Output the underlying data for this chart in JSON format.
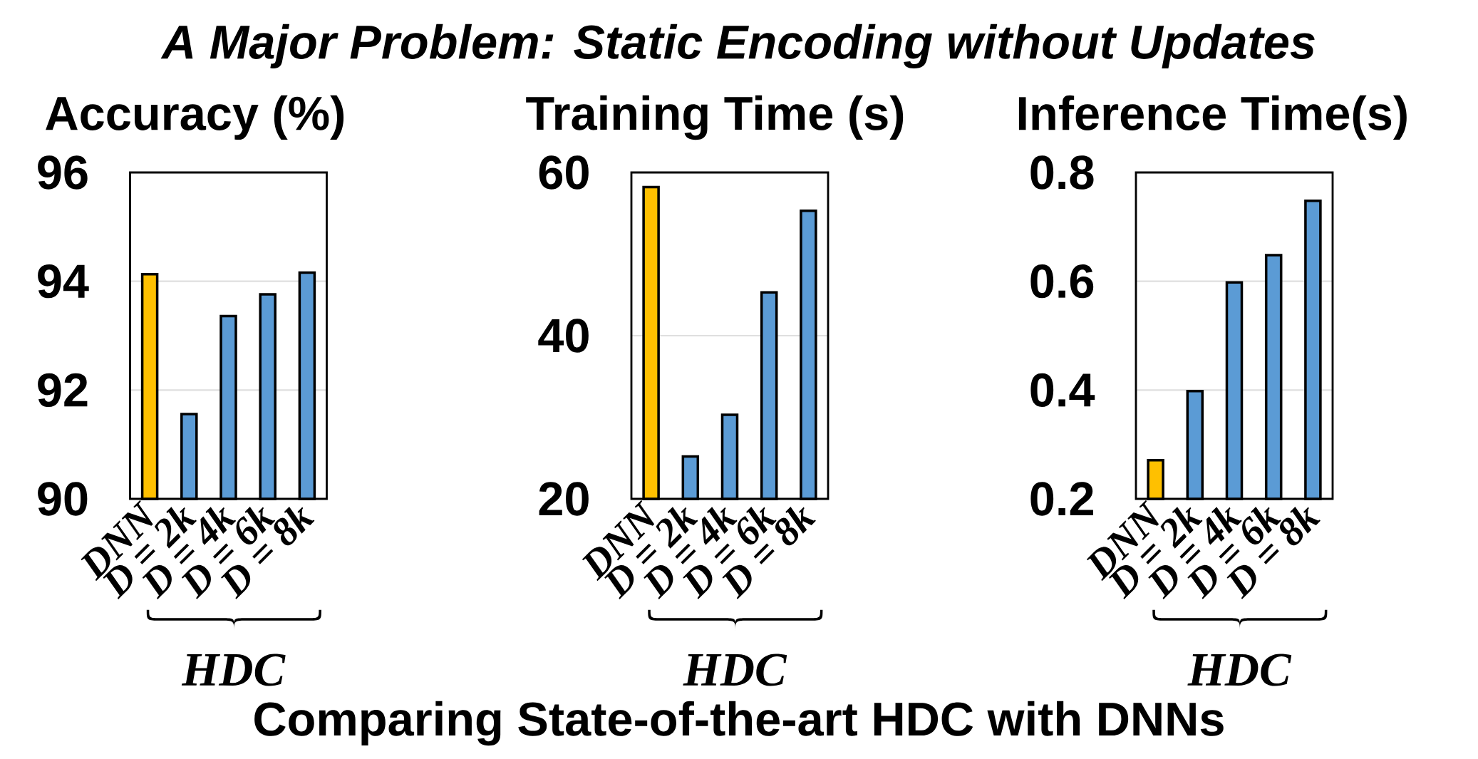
{
  "chart_data": [
    {
      "type": "bar",
      "title": "A Major Problem: Static Encoding without Updates",
      "ylabel": "Accuracy (%)",
      "categories": [
        "DNN",
        "D = 2k",
        "D = 4k",
        "D = 6k",
        "D = 8k"
      ],
      "values": [
        94.13,
        91.56,
        93.36,
        93.76,
        94.16
      ],
      "colors": [
        "#ffc000",
        "#5b9bd5",
        "#5b9bd5",
        "#5b9bd5",
        "#5b9bd5"
      ],
      "ylim": [
        90,
        96
      ],
      "yticks": [
        90,
        92,
        94,
        96
      ],
      "grid": "y",
      "annotations": [
        "HDC",
        "Comparing State-of-the-art HDC with DNNs"
      ]
    },
    {
      "type": "bar",
      "ylabel": "Training Time (s)",
      "categories": [
        "DNN",
        "D = 2k",
        "D = 4k",
        "D = 6k",
        "D = 8k"
      ],
      "values": [
        58.2,
        25.2,
        30.3,
        45.3,
        55.3
      ],
      "colors": [
        "#ffc000",
        "#5b9bd5",
        "#5b9bd5",
        "#5b9bd5",
        "#5b9bd5"
      ],
      "ylim": [
        20,
        60
      ],
      "yticks": [
        20,
        40,
        60
      ],
      "grid": "y",
      "annotations": [
        "HDC"
      ]
    },
    {
      "type": "bar",
      "ylabel": "Inference Time(s)",
      "categories": [
        "DNN",
        "D = 2k",
        "D = 4k",
        "D = 6k",
        "D = 8k"
      ],
      "values": [
        0.271,
        0.398,
        0.598,
        0.648,
        0.748
      ],
      "colors": [
        "#ffc000",
        "#5b9bd5",
        "#5b9bd5",
        "#5b9bd5",
        "#5b9bd5"
      ],
      "ylim": [
        0.2,
        0.8
      ],
      "yticks": [
        0.2,
        0.4,
        0.6,
        0.8
      ],
      "grid": "y",
      "annotations": [
        "HDC"
      ]
    }
  ]
}
